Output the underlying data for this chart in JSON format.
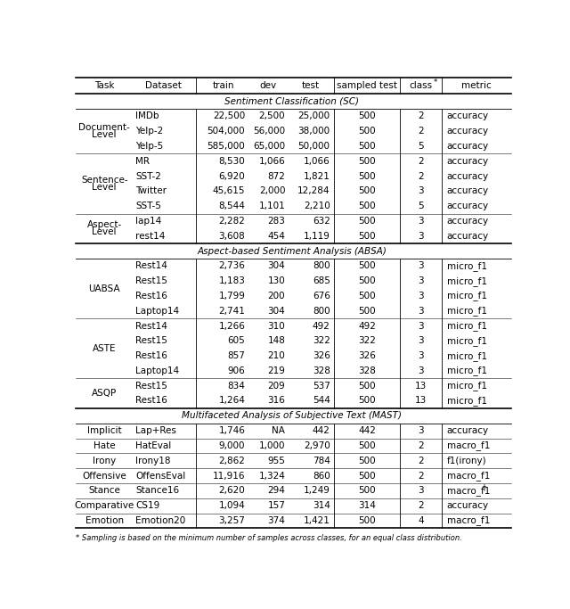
{
  "col_headers": [
    "Task",
    "Dataset",
    "train",
    "dev",
    "test",
    "sampled test",
    "class*",
    "metric"
  ],
  "sections": [
    {
      "title": "Sentiment Classification (SC)",
      "rows": [
        {
          "task_lines": [
            "Document-",
            "Level"
          ],
          "task_span": 3,
          "dataset": "IMDb",
          "train": "22,500",
          "dev": "2,500",
          "test": "25,000",
          "sampled": "500",
          "class": "2",
          "metric": "accuracy"
        },
        {
          "task_lines": [],
          "task_span": 0,
          "dataset": "Yelp-2",
          "train": "504,000",
          "dev": "56,000",
          "test": "38,000",
          "sampled": "500",
          "class": "2",
          "metric": "accuracy"
        },
        {
          "task_lines": [],
          "task_span": 0,
          "dataset": "Yelp-5",
          "train": "585,000",
          "dev": "65,000",
          "test": "50,000",
          "sampled": "500",
          "class": "5",
          "metric": "accuracy"
        },
        {
          "task_lines": [
            "Sentence-",
            "Level"
          ],
          "task_span": 4,
          "dataset": "MR",
          "train": "8,530",
          "dev": "1,066",
          "test": "1,066",
          "sampled": "500",
          "class": "2",
          "metric": "accuracy"
        },
        {
          "task_lines": [],
          "task_span": 0,
          "dataset": "SST-2",
          "train": "6,920",
          "dev": "872",
          "test": "1,821",
          "sampled": "500",
          "class": "2",
          "metric": "accuracy"
        },
        {
          "task_lines": [],
          "task_span": 0,
          "dataset": "Twitter",
          "train": "45,615",
          "dev": "2,000",
          "test": "12,284",
          "sampled": "500",
          "class": "3",
          "metric": "accuracy"
        },
        {
          "task_lines": [],
          "task_span": 0,
          "dataset": "SST-5",
          "train": "8,544",
          "dev": "1,101",
          "test": "2,210",
          "sampled": "500",
          "class": "5",
          "metric": "accuracy"
        },
        {
          "task_lines": [
            "Aspect-",
            "Level"
          ],
          "task_span": 2,
          "dataset": "lap14",
          "train": "2,282",
          "dev": "283",
          "test": "632",
          "sampled": "500",
          "class": "3",
          "metric": "accuracy"
        },
        {
          "task_lines": [],
          "task_span": 0,
          "dataset": "rest14",
          "train": "3,608",
          "dev": "454",
          "test": "1,119",
          "sampled": "500",
          "class": "3",
          "metric": "accuracy"
        }
      ]
    },
    {
      "title": "Aspect-based Sentiment Analysis (ABSA)",
      "rows": [
        {
          "task_lines": [
            "UABSA"
          ],
          "task_span": 4,
          "dataset": "Rest14",
          "train": "2,736",
          "dev": "304",
          "test": "800",
          "sampled": "500",
          "class": "3",
          "metric": "micro_f1"
        },
        {
          "task_lines": [],
          "task_span": 0,
          "dataset": "Rest15",
          "train": "1,183",
          "dev": "130",
          "test": "685",
          "sampled": "500",
          "class": "3",
          "metric": "micro_f1"
        },
        {
          "task_lines": [],
          "task_span": 0,
          "dataset": "Rest16",
          "train": "1,799",
          "dev": "200",
          "test": "676",
          "sampled": "500",
          "class": "3",
          "metric": "micro_f1"
        },
        {
          "task_lines": [],
          "task_span": 0,
          "dataset": "Laptop14",
          "train": "2,741",
          "dev": "304",
          "test": "800",
          "sampled": "500",
          "class": "3",
          "metric": "micro_f1"
        },
        {
          "task_lines": [
            "ASTE"
          ],
          "task_span": 4,
          "dataset": "Rest14",
          "train": "1,266",
          "dev": "310",
          "test": "492",
          "sampled": "492",
          "class": "3",
          "metric": "micro_f1"
        },
        {
          "task_lines": [],
          "task_span": 0,
          "dataset": "Rest15",
          "train": "605",
          "dev": "148",
          "test": "322",
          "sampled": "322",
          "class": "3",
          "metric": "micro_f1"
        },
        {
          "task_lines": [],
          "task_span": 0,
          "dataset": "Rest16",
          "train": "857",
          "dev": "210",
          "test": "326",
          "sampled": "326",
          "class": "3",
          "metric": "micro_f1"
        },
        {
          "task_lines": [],
          "task_span": 0,
          "dataset": "Laptop14",
          "train": "906",
          "dev": "219",
          "test": "328",
          "sampled": "328",
          "class": "3",
          "metric": "micro_f1"
        },
        {
          "task_lines": [
            "ASQP"
          ],
          "task_span": 2,
          "dataset": "Rest15",
          "train": "834",
          "dev": "209",
          "test": "537",
          "sampled": "500",
          "class": "13",
          "metric": "micro_f1"
        },
        {
          "task_lines": [],
          "task_span": 0,
          "dataset": "Rest16",
          "train": "1,264",
          "dev": "316",
          "test": "544",
          "sampled": "500",
          "class": "13",
          "metric": "micro_f1"
        }
      ]
    },
    {
      "title": "Multifaceted Analysis of Subjective Text (MAST)",
      "rows": [
        {
          "task_lines": [
            "Implicit"
          ],
          "task_span": 1,
          "dataset": "Lap+Res",
          "train": "1,746",
          "dev": "NA",
          "test": "442",
          "sampled": "442",
          "class": "3",
          "metric": "accuracy",
          "metric_super": ""
        },
        {
          "task_lines": [
            "Hate"
          ],
          "task_span": 1,
          "dataset": "HatEval",
          "train": "9,000",
          "dev": "1,000",
          "test": "2,970",
          "sampled": "500",
          "class": "2",
          "metric": "macro_f1",
          "metric_super": ""
        },
        {
          "task_lines": [
            "Irony"
          ],
          "task_span": 1,
          "dataset": "Irony18",
          "train": "2,862",
          "dev": "955",
          "test": "784",
          "sampled": "500",
          "class": "2",
          "metric": "f1(irony)",
          "metric_super": ""
        },
        {
          "task_lines": [
            "Offensive"
          ],
          "task_span": 1,
          "dataset": "OffensEval",
          "train": "11,916",
          "dev": "1,324",
          "test": "860",
          "sampled": "500",
          "class": "2",
          "metric": "macro_f1",
          "metric_super": ""
        },
        {
          "task_lines": [
            "Stance"
          ],
          "task_span": 1,
          "dataset": "Stance16",
          "train": "2,620",
          "dev": "294",
          "test": "1,249",
          "sampled": "500",
          "class": "3",
          "metric": "macro_f1",
          "metric_super": "†"
        },
        {
          "task_lines": [
            "Comparative"
          ],
          "task_span": 1,
          "dataset": "CS19",
          "train": "1,094",
          "dev": "157",
          "test": "314",
          "sampled": "314",
          "class": "2",
          "metric": "accuracy",
          "metric_super": ""
        },
        {
          "task_lines": [
            "Emotion"
          ],
          "task_span": 1,
          "dataset": "Emotion20",
          "train": "3,257",
          "dev": "374",
          "test": "1,421",
          "sampled": "500",
          "class": "4",
          "metric": "macro_f1",
          "metric_super": ""
        }
      ]
    }
  ],
  "footnote": "* Sampling is based on the minimum number of samples across classes, for an equal class distribution."
}
